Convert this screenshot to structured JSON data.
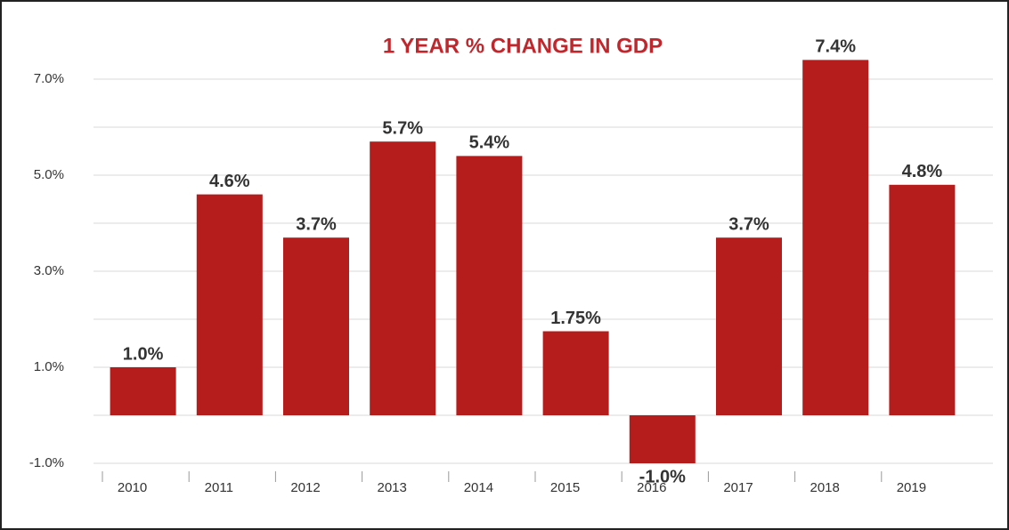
{
  "chart_data": {
    "type": "bar",
    "title": "1 YEAR % CHANGE IN GDP",
    "categories": [
      "2010",
      "2011",
      "2012",
      "2013",
      "2014",
      "2015",
      "2016",
      "2017",
      "2018",
      "2019"
    ],
    "values": [
      1.0,
      4.6,
      3.7,
      5.7,
      5.4,
      1.75,
      -1.0,
      3.7,
      7.4,
      4.8
    ],
    "value_labels": [
      "1.0%",
      "4.6%",
      "3.7%",
      "5.7%",
      "5.4%",
      "1.75%",
      "-1.0%",
      "3.7%",
      "7.4%",
      "4.8%"
    ],
    "color": "#b51c1c",
    "ylim": [
      -1,
      7.6
    ],
    "yticks": [
      {
        "value": -1,
        "label": "-1.0%"
      },
      {
        "value": 1,
        "label": "1.0%"
      },
      {
        "value": 3,
        "label": "3.0%"
      },
      {
        "value": 5,
        "label": "5.0%"
      },
      {
        "value": 7,
        "label": "7.0%"
      }
    ],
    "grid": true,
    "minor_grid": true
  }
}
